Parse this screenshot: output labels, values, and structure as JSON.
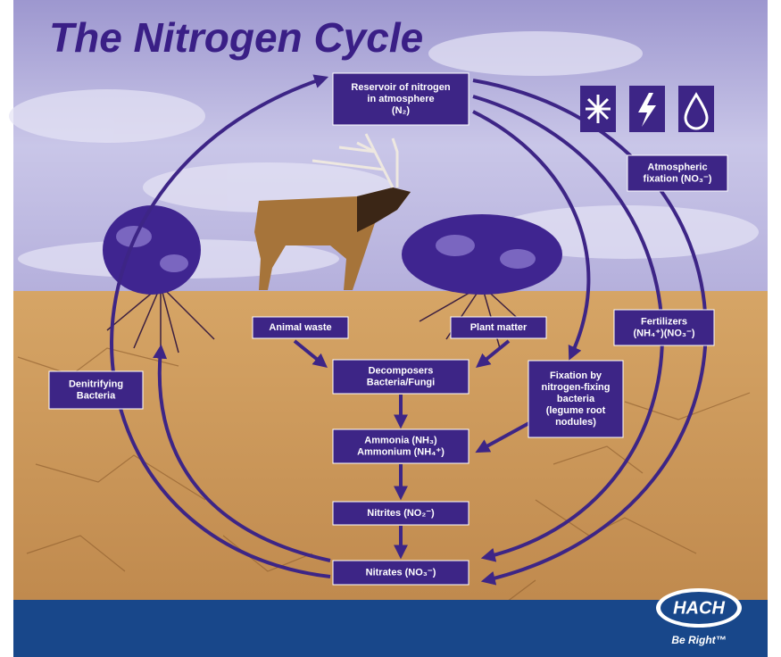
{
  "title": "The Nitrogen Cycle",
  "nodes": [
    {
      "lines": [
        "Reservoir of nitrogen",
        "in atmosphere",
        "(N₂)"
      ]
    },
    {
      "lines": [
        "Atmospheric",
        "fixation (NO₃⁻)"
      ]
    },
    {
      "lines": [
        "Fertilizers",
        "(NH₄⁺)(NO₃⁻)"
      ]
    },
    {
      "lines": [
        "Animal waste"
      ]
    },
    {
      "lines": [
        "Plant matter"
      ]
    },
    {
      "lines": [
        "Decomposers",
        "Bacteria/Fungi"
      ]
    },
    {
      "lines": [
        "Fixation by",
        "nitrogen-fixing",
        "bacteria",
        "(legume root",
        "nodules)"
      ]
    },
    {
      "lines": [
        "Denitrifying",
        "Bacteria"
      ]
    },
    {
      "lines": [
        "Ammonia (NH₃)",
        "Ammonium (NH₄⁺)"
      ]
    },
    {
      "lines": [
        "Nitrites (NO₂⁻)"
      ]
    },
    {
      "lines": [
        "Nitrates (NO₃⁻)"
      ]
    }
  ],
  "logo": {
    "brand": "HACH",
    "tagline": "Be Right™"
  }
}
